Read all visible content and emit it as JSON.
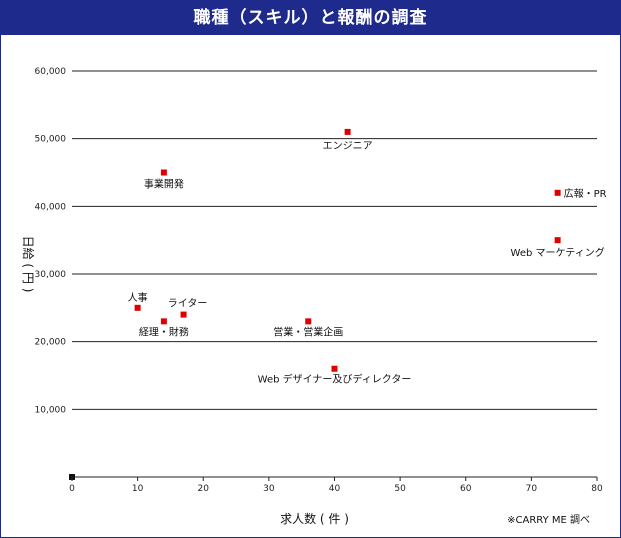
{
  "chart_data": {
    "type": "scatter",
    "title": "職種（スキル）と報酬の調査",
    "xlabel": "求人数 ( 件 )",
    "ylabel": "日給 ( 円 )",
    "xlim": [
      0,
      80
    ],
    "ylim": [
      0,
      60000
    ],
    "x_ticks": [
      "0",
      "10",
      "20",
      "30",
      "40",
      "50",
      "60",
      "70",
      "80"
    ],
    "y_ticks": [
      "10,000",
      "20,000",
      "30,000",
      "40,000",
      "50,000",
      "60,000"
    ],
    "grid": "horizontal",
    "marker_color": "#e00000",
    "points": [
      {
        "label": "エンジニア",
        "x": 42,
        "y": 51000
      },
      {
        "label": "事業開発",
        "x": 14,
        "y": 45000
      },
      {
        "label": "広報・PR",
        "x": 74,
        "y": 42000
      },
      {
        "label": "Web マーケティング",
        "x": 74,
        "y": 35000
      },
      {
        "label": "人事",
        "x": 10,
        "y": 25000
      },
      {
        "label": "ライター",
        "x": 17,
        "y": 24000
      },
      {
        "label": "経理・財務",
        "x": 14,
        "y": 23000
      },
      {
        "label": "営業・営業企画",
        "x": 36,
        "y": 23000
      },
      {
        "label": "Web デザイナー及びディレクター",
        "x": 40,
        "y": 16000
      }
    ],
    "source_note": "※CARRY ME 調べ"
  }
}
